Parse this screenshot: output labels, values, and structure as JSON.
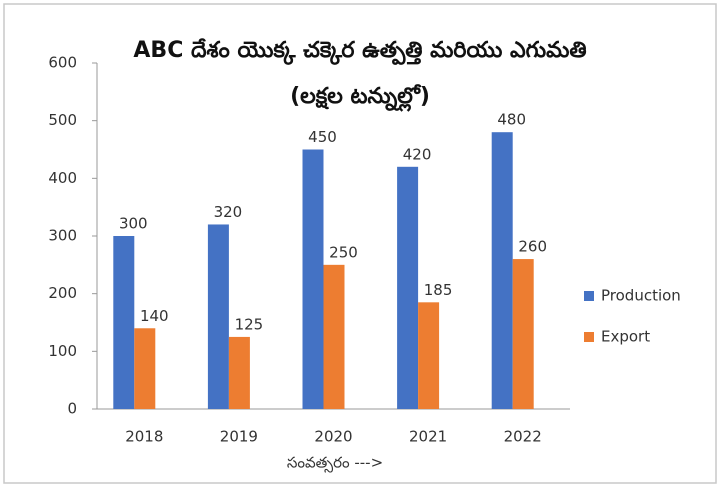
{
  "chart_data": {
    "type": "bar",
    "title": "ABC దేశం యొక్క చక్కెర ఉత్పత్తి మరియు ఎగుమతి (లక్షల టన్నుల్లో)",
    "x_label": "సంవత్సరం --->",
    "categories": [
      "2018",
      "2019",
      "2020",
      "2021",
      "2022"
    ],
    "series": [
      {
        "name": "Production",
        "color": "#4472c4",
        "values": [
          300,
          320,
          450,
          420,
          480
        ]
      },
      {
        "name": "Export",
        "color": "#ed7d31",
        "values": [
          140,
          125,
          250,
          185,
          260
        ]
      }
    ],
    "ylim": [
      0,
      600
    ],
    "yticks": [
      0,
      100,
      200,
      300,
      400,
      500,
      600
    ],
    "grid": false,
    "legend": "right"
  }
}
